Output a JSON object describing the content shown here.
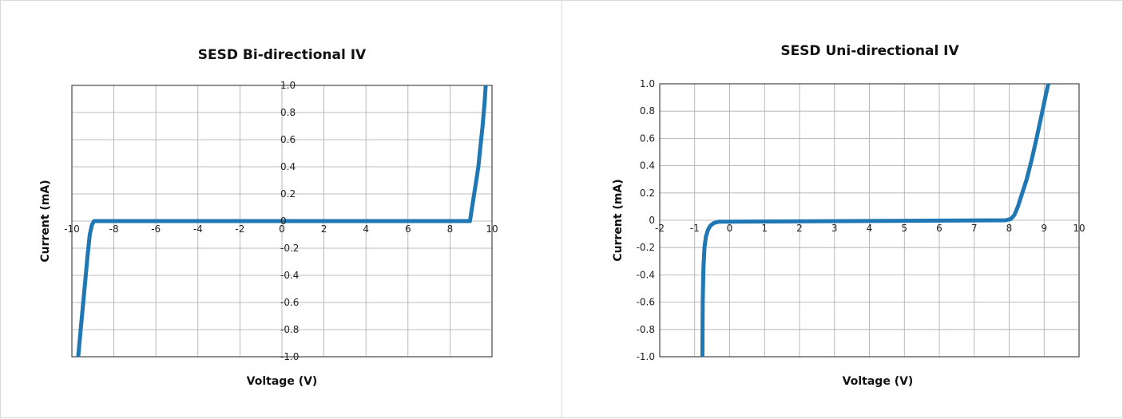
{
  "colors": {
    "curve": "#1f77b4"
  },
  "chart_data": [
    {
      "type": "line",
      "title": "SESD Bi-directional IV",
      "xlabel": "Voltage (V)",
      "ylabel": "Current (mA)",
      "xlim": [
        -10,
        10
      ],
      "ylim": [
        -1.0,
        1.0
      ],
      "x_ticks": [
        -10,
        -8,
        -6,
        -4,
        -2,
        0,
        2,
        4,
        6,
        8,
        10
      ],
      "x_tick_labels": [
        "-10",
        "-8",
        "-6",
        "-4",
        "-2",
        "0",
        "2",
        "4",
        "6",
        "8",
        "10"
      ],
      "y_ticks": [
        -1.0,
        -0.8,
        -0.6,
        -0.4,
        -0.2,
        0,
        0.2,
        0.4,
        0.6,
        0.8,
        1.0
      ],
      "y_tick_labels": [
        "-1.0",
        "-0.8",
        "-0.6",
        "-0.4",
        "-0.2",
        "0",
        "0.2",
        "0.4",
        "0.6",
        "0.8",
        "1.0"
      ],
      "grid": true,
      "series": [
        {
          "x": [
            -9.7,
            -9.55,
            -9.4,
            -9.25,
            -9.15,
            -9.05,
            -8.95,
            -8.9,
            8.9,
            8.95,
            9.05,
            9.2,
            9.35,
            9.45,
            9.55,
            9.65,
            9.7
          ],
          "y": [
            -1.0,
            -0.75,
            -0.5,
            -0.25,
            -0.1,
            -0.03,
            0,
            0,
            0,
            0,
            0.1,
            0.25,
            0.4,
            0.55,
            0.7,
            0.88,
            1.0
          ]
        }
      ]
    },
    {
      "type": "line",
      "title": "SESD Uni-directional IV",
      "xlabel": "Voltage (V)",
      "ylabel": "Current (mA)",
      "xlim": [
        -2,
        10
      ],
      "ylim": [
        -1.0,
        1.0
      ],
      "x_ticks": [
        -2,
        -1,
        0,
        1,
        2,
        3,
        4,
        5,
        6,
        7,
        8,
        9,
        10
      ],
      "x_tick_labels": [
        "-2",
        "-1",
        "0",
        "1",
        "2",
        "3",
        "4",
        "5",
        "6",
        "7",
        "8",
        "9",
        "10"
      ],
      "y_ticks": [
        -1.0,
        -0.8,
        -0.6,
        -0.4,
        -0.2,
        0,
        0.2,
        0.4,
        0.6,
        0.8,
        1.0
      ],
      "y_tick_labels": [
        "-1.0",
        "-0.8",
        "-0.6",
        "-0.4",
        "-0.2",
        "0",
        "0.2",
        "0.4",
        "0.6",
        "0.8",
        "1.0"
      ],
      "grid": true,
      "series": [
        {
          "x": [
            -0.78,
            -0.77,
            -0.75,
            -0.72,
            -0.68,
            -0.62,
            -0.55,
            -0.45,
            -0.3,
            0,
            7.9,
            8.05,
            8.15,
            8.25,
            8.35,
            8.5,
            8.65,
            8.8,
            8.95,
            9.05,
            9.12
          ],
          "y": [
            -1.0,
            -0.6,
            -0.35,
            -0.2,
            -0.12,
            -0.07,
            -0.04,
            -0.02,
            -0.01,
            -0.01,
            0,
            0.01,
            0.04,
            0.1,
            0.18,
            0.3,
            0.45,
            0.62,
            0.8,
            0.92,
            1.0
          ]
        }
      ]
    }
  ]
}
